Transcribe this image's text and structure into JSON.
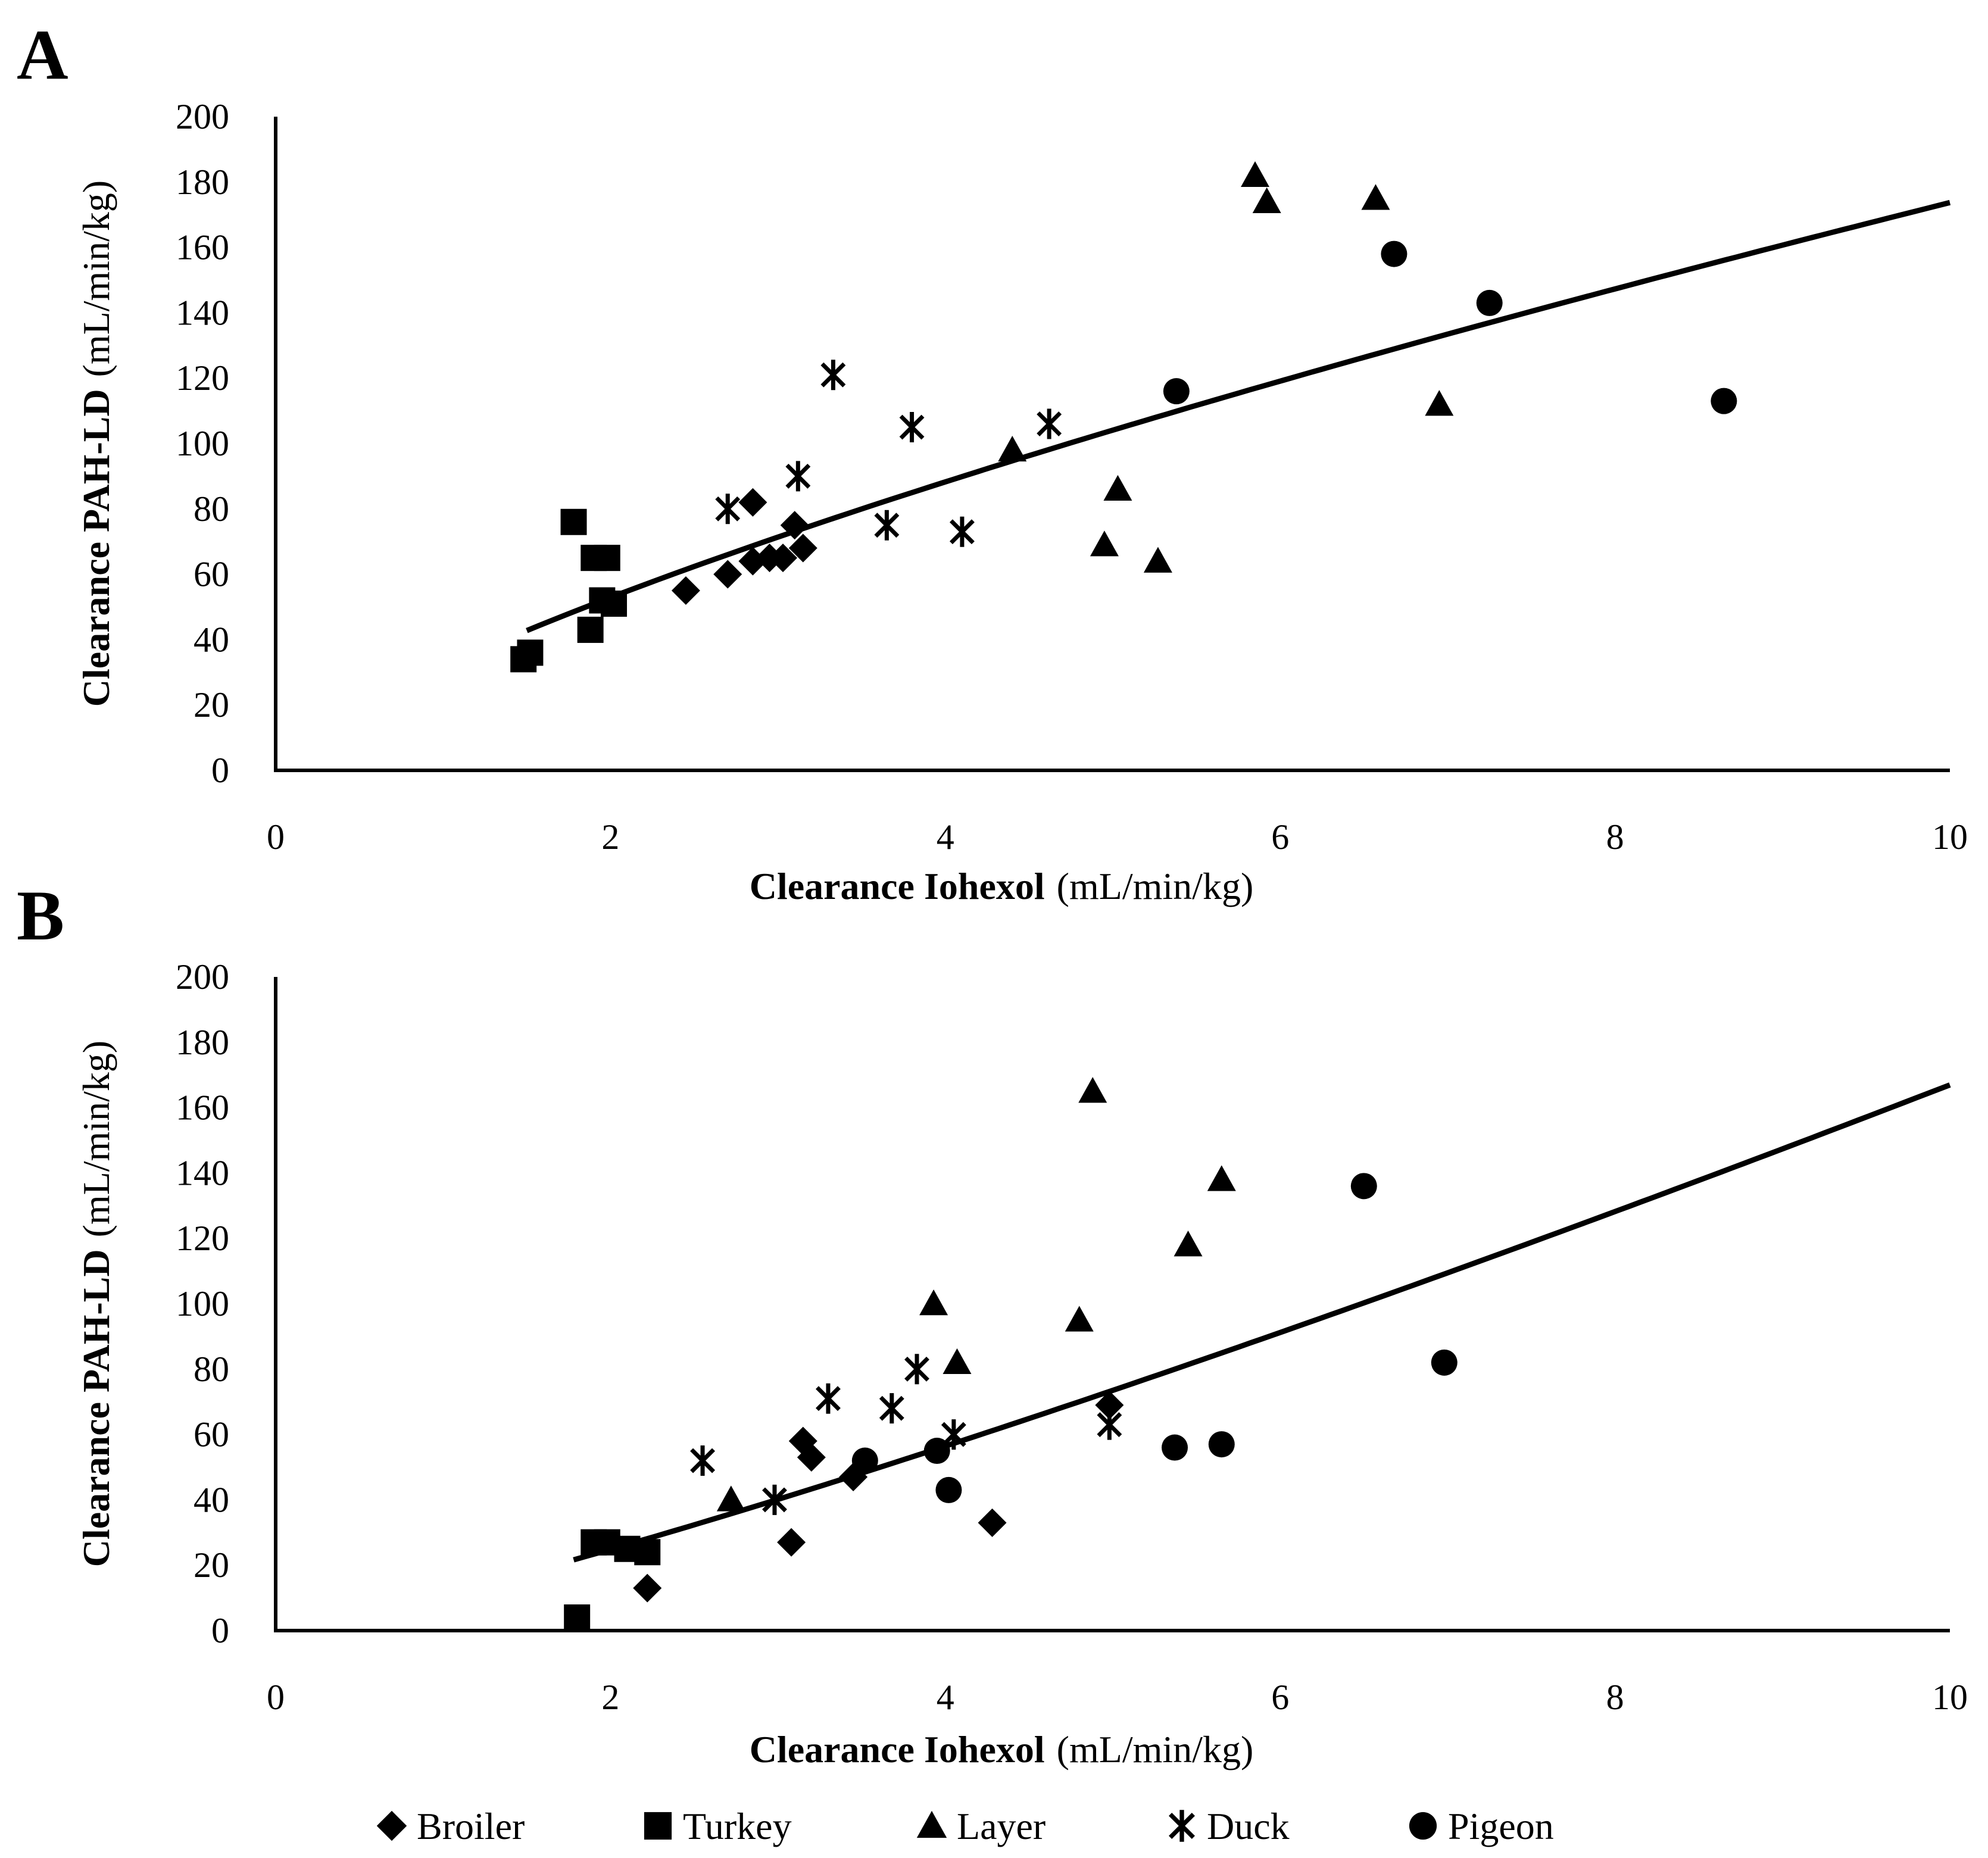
{
  "colors": {
    "ink": "#000000",
    "background": "#ffffff"
  },
  "chart_data": [
    {
      "panel": "A",
      "type": "scatter",
      "xlabel_bold": "Clearance Iohexol",
      "xlabel_unit": "(mL/min/kg)",
      "ylabel_bold": "Clearance PAH-LD",
      "ylabel_unit": "(mL/min/kg)",
      "xlim": [
        0,
        10
      ],
      "ylim": [
        0,
        200
      ],
      "x_ticks": [
        "0",
        "2",
        "4",
        "6",
        "8",
        "10"
      ],
      "y_ticks": [
        "0",
        "20",
        "40",
        "60",
        "80",
        "100",
        "120",
        "140",
        "160",
        "180",
        "200"
      ],
      "grid": false,
      "series": [
        {
          "name": "Broiler",
          "marker": "diamond",
          "points": [
            [
              2.45,
              55
            ],
            [
              2.7,
              60
            ],
            [
              2.85,
              82
            ],
            [
              2.85,
              64
            ],
            [
              2.95,
              65
            ],
            [
              3.03,
              65
            ],
            [
              3.1,
              75
            ],
            [
              3.15,
              68
            ]
          ]
        },
        {
          "name": "Turkey",
          "marker": "square",
          "points": [
            [
              1.48,
              34
            ],
            [
              1.52,
              36
            ],
            [
              1.78,
              76
            ],
            [
              1.88,
              43
            ],
            [
              1.9,
              65
            ],
            [
              1.98,
              65
            ],
            [
              1.95,
              52
            ],
            [
              2.02,
              51
            ]
          ]
        },
        {
          "name": "Layer",
          "marker": "triangle",
          "points": [
            [
              4.4,
              98
            ],
            [
              4.95,
              69
            ],
            [
              5.03,
              86
            ],
            [
              5.27,
              64
            ],
            [
              5.85,
              182
            ],
            [
              5.92,
              174
            ],
            [
              6.57,
              175
            ],
            [
              6.95,
              112
            ]
          ]
        },
        {
          "name": "Duck",
          "marker": "star",
          "points": [
            [
              2.7,
              80
            ],
            [
              3.12,
              90
            ],
            [
              3.33,
              121
            ],
            [
              3.65,
              75
            ],
            [
              3.8,
              105
            ],
            [
              4.1,
              73
            ],
            [
              4.62,
              106
            ]
          ]
        },
        {
          "name": "Pigeon",
          "marker": "circle",
          "points": [
            [
              5.38,
              116
            ],
            [
              6.68,
              158
            ],
            [
              7.25,
              143
            ],
            [
              8.65,
              113
            ]
          ]
        }
      ],
      "trendline": {
        "type": "power",
        "coef": 31.69,
        "exp": 0.7389,
        "x_range": [
          1.5,
          10
        ]
      }
    },
    {
      "panel": "B",
      "type": "scatter",
      "xlabel_bold": "Clearance Iohexol",
      "xlabel_unit": "(mL/min/kg)",
      "ylabel_bold": "Clearance PAH-LD",
      "ylabel_unit": "(mL/min/kg)",
      "xlim": [
        0,
        10
      ],
      "ylim": [
        0,
        200
      ],
      "x_ticks": [
        "0",
        "2",
        "4",
        "6",
        "8",
        "10"
      ],
      "y_ticks": [
        "0",
        "20",
        "40",
        "60",
        "80",
        "100",
        "120",
        "140",
        "160",
        "180",
        "200"
      ],
      "grid": false,
      "series": [
        {
          "name": "Broiler",
          "marker": "diamond",
          "points": [
            [
              2.22,
              13
            ],
            [
              3.08,
              27
            ],
            [
              3.15,
              58
            ],
            [
              3.2,
              53
            ],
            [
              3.45,
              47
            ],
            [
              4.28,
              33
            ],
            [
              4.98,
              69
            ]
          ]
        },
        {
          "name": "Turkey",
          "marker": "square",
          "points": [
            [
              1.8,
              4
            ],
            [
              1.9,
              27
            ],
            [
              1.98,
              27
            ],
            [
              2.1,
              25
            ],
            [
              2.22,
              24
            ]
          ]
        },
        {
          "name": "Layer",
          "marker": "triangle",
          "points": [
            [
              2.72,
              40
            ],
            [
              3.93,
              100
            ],
            [
              4.07,
              82
            ],
            [
              4.8,
              95
            ],
            [
              4.88,
              165
            ],
            [
              5.45,
              118
            ],
            [
              5.65,
              138
            ]
          ]
        },
        {
          "name": "Duck",
          "marker": "star",
          "points": [
            [
              2.55,
              52
            ],
            [
              2.98,
              40
            ],
            [
              3.3,
              71
            ],
            [
              3.68,
              68
            ],
            [
              3.83,
              80
            ],
            [
              4.05,
              60
            ],
            [
              4.98,
              63
            ]
          ]
        },
        {
          "name": "Pigeon",
          "marker": "circle",
          "points": [
            [
              3.52,
              52
            ],
            [
              3.95,
              55
            ],
            [
              4.02,
              43
            ],
            [
              5.37,
              56
            ],
            [
              5.65,
              57
            ],
            [
              6.5,
              136
            ],
            [
              6.98,
              82
            ]
          ]
        }
      ],
      "trendline": {
        "type": "power",
        "coef": 10.94,
        "exp": 1.1836,
        "x_range": [
          1.78,
          10
        ]
      }
    }
  ],
  "legend": [
    {
      "label": "Broiler",
      "marker": "diamond"
    },
    {
      "label": "Turkey",
      "marker": "square"
    },
    {
      "label": "Layer",
      "marker": "triangle"
    },
    {
      "label": "Duck",
      "marker": "star"
    },
    {
      "label": "Pigeon",
      "marker": "circle"
    }
  ]
}
